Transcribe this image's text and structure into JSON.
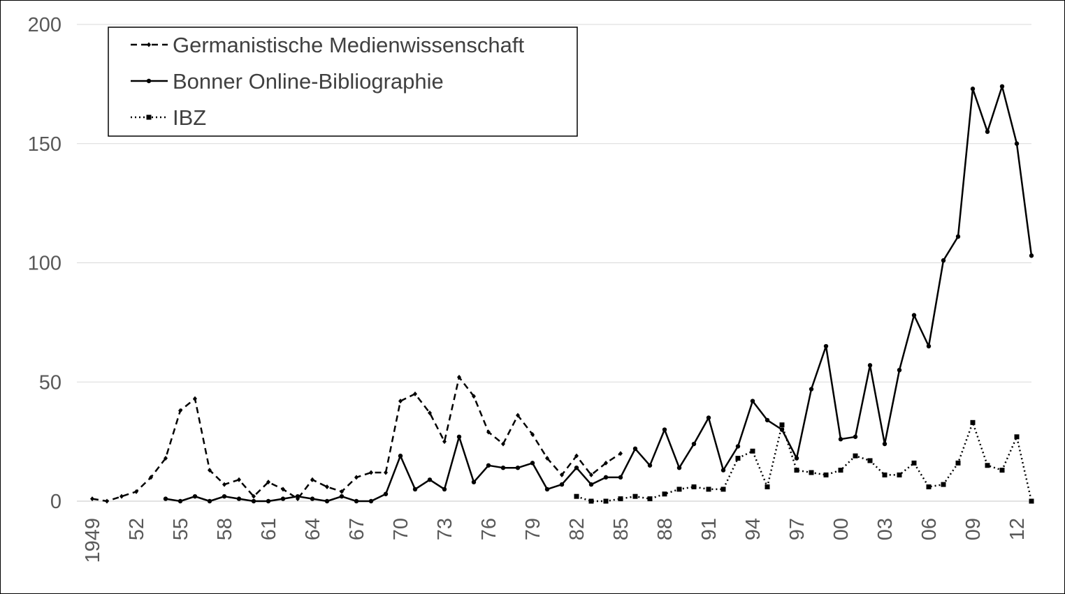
{
  "chart_data": {
    "type": "line",
    "title": "",
    "xlabel": "",
    "ylabel": "",
    "ylim": [
      0,
      200
    ],
    "yticks": [
      "0",
      "50",
      "100",
      "150",
      "200"
    ],
    "grid": "horizontal",
    "legend_position": "top-left",
    "x": [
      1949,
      1950,
      1951,
      1952,
      1953,
      1954,
      1955,
      1956,
      1957,
      1958,
      1959,
      1960,
      1961,
      1962,
      1963,
      1964,
      1965,
      1966,
      1967,
      1968,
      1969,
      1970,
      1971,
      1972,
      1973,
      1974,
      1975,
      1976,
      1977,
      1978,
      1979,
      1980,
      1981,
      1982,
      1983,
      1984,
      1985,
      1986,
      1987,
      1988,
      1989,
      1990,
      1991,
      1992,
      1993,
      1994,
      1995,
      1996,
      1997,
      1998,
      1999,
      2000,
      2001,
      2002,
      2003,
      2004,
      2005,
      2006,
      2007,
      2008,
      2009,
      2010,
      2011,
      2012,
      2013
    ],
    "xtick_labels": [
      "1949",
      "52",
      "55",
      "58",
      "61",
      "64",
      "67",
      "70",
      "73",
      "76",
      "79",
      "82",
      "85",
      "88",
      "91",
      "94",
      "97",
      "00",
      "03",
      "06",
      "09",
      "12"
    ],
    "series": [
      {
        "name": "Germanistische Medienwissenschaft",
        "style": "dashed",
        "marker": "diamond",
        "color": "#000000",
        "values": [
          1,
          0,
          2,
          4,
          10,
          18,
          38,
          43,
          13,
          7,
          9,
          2,
          8,
          5,
          1,
          9,
          6,
          4,
          10,
          12,
          12,
          42,
          45,
          37,
          25,
          52,
          44,
          29,
          24,
          36,
          28,
          18,
          11,
          19,
          11,
          16,
          20,
          null,
          null,
          null,
          null,
          null,
          null,
          null,
          null,
          null,
          null,
          null,
          null,
          null,
          null,
          null,
          null,
          null,
          null,
          null,
          null,
          null,
          null,
          null,
          null,
          null,
          null,
          null,
          null
        ]
      },
      {
        "name": "Bonner Online-Bibliographie",
        "style": "solid",
        "marker": "circle",
        "color": "#000000",
        "values": [
          null,
          null,
          null,
          null,
          null,
          1,
          0,
          2,
          0,
          2,
          1,
          0,
          0,
          1,
          2,
          1,
          0,
          2,
          0,
          0,
          3,
          19,
          5,
          9,
          5,
          27,
          8,
          15,
          14,
          14,
          16,
          5,
          7,
          14,
          7,
          10,
          10,
          22,
          15,
          30,
          14,
          24,
          35,
          13,
          23,
          42,
          34,
          30,
          18,
          47,
          65,
          26,
          27,
          57,
          24,
          55,
          78,
          65,
          101,
          111,
          173,
          155,
          174,
          150,
          103
        ]
      },
      {
        "name": "IBZ",
        "style": "dotted",
        "marker": "square",
        "color": "#000000",
        "values": [
          null,
          null,
          null,
          null,
          null,
          null,
          null,
          null,
          null,
          null,
          null,
          null,
          null,
          null,
          null,
          null,
          null,
          null,
          null,
          null,
          null,
          null,
          null,
          null,
          null,
          null,
          null,
          null,
          null,
          null,
          null,
          null,
          null,
          2,
          0,
          0,
          1,
          2,
          1,
          3,
          5,
          6,
          5,
          5,
          18,
          21,
          6,
          32,
          13,
          12,
          11,
          13,
          19,
          17,
          11,
          11,
          16,
          6,
          7,
          16,
          33,
          15,
          13,
          27,
          0
        ]
      }
    ]
  }
}
